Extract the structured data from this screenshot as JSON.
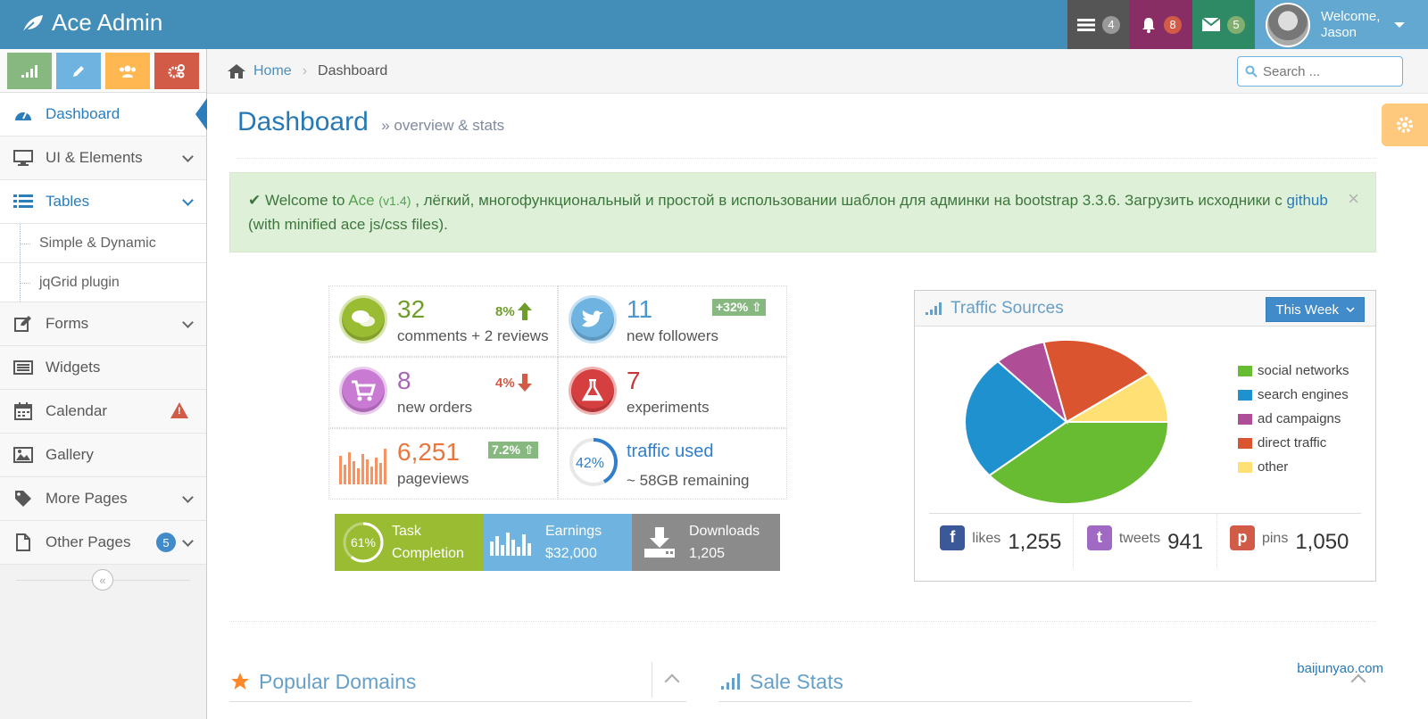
{
  "brand": {
    "name": "Ace Admin"
  },
  "navbar": {
    "tasks_count": "4",
    "notifications_count": "8",
    "messages_count": "5",
    "welcome": "Welcome,",
    "user_name": "Jason"
  },
  "sidebar": {
    "items": [
      {
        "label": "Dashboard"
      },
      {
        "label": "UI & Elements"
      },
      {
        "label": "Tables"
      },
      {
        "label": "Forms"
      },
      {
        "label": "Widgets"
      },
      {
        "label": "Calendar"
      },
      {
        "label": "Gallery"
      },
      {
        "label": "More Pages"
      },
      {
        "label": "Other Pages",
        "badge": "5"
      }
    ],
    "subitems": [
      {
        "label": "Simple & Dynamic"
      },
      {
        "label": "jqGrid plugin"
      }
    ]
  },
  "breadcrumb": {
    "home": "Home",
    "current": "Dashboard"
  },
  "search": {
    "placeholder": "Search ..."
  },
  "page": {
    "title": "Dashboard",
    "subtitle": "» overview & stats"
  },
  "alert": {
    "prefix": "Welcome to",
    "brand": "Ace",
    "version": "(v1.4)",
    "text": ", лёгкий, многофункциональный и простой в использовании шаблон для админки на bootstrap 3.3.6. Загрузить исходники с",
    "link": "github",
    "suffix": "(with minified ace js/css files)."
  },
  "infoboxes": [
    {
      "value": "32",
      "label": "comments + 2 reviews",
      "change": "8%",
      "direction": "up",
      "color": "#9abc32"
    },
    {
      "value": "11",
      "label": "new followers",
      "change": "+32%",
      "direction": "up",
      "color": "#6fb3e0"
    },
    {
      "value": "8",
      "label": "new orders",
      "change": "4%",
      "direction": "down",
      "color": "#b74635"
    },
    {
      "value": "7",
      "label": "experiments",
      "color": "#d53f40"
    },
    {
      "value": "6,251",
      "label": "pageviews",
      "change": "7.2%",
      "direction": "up",
      "color": "#e8b110"
    },
    {
      "value": "traffic used",
      "label": "~ 58GB remaining",
      "percent": "42%",
      "color": "#307ecc"
    }
  ],
  "stats_strip": [
    {
      "percent": "61%",
      "line1": "Task",
      "line2": "Completion",
      "color": "#9abc32"
    },
    {
      "line1": "Earnings",
      "line2": "$32,000",
      "color": "#6fb3e0"
    },
    {
      "line1": "Downloads",
      "line2": "1,205",
      "color": "#8b8b8b"
    }
  ],
  "traffic": {
    "title": "Traffic Sources",
    "period": "This Week",
    "legend": [
      {
        "label": "social networks",
        "color": "#68bc31"
      },
      {
        "label": "search engines",
        "color": "#2091cf"
      },
      {
        "label": "ad campaigns",
        "color": "#af4e96"
      },
      {
        "label": "direct traffic",
        "color": "#da5430"
      },
      {
        "label": "other",
        "color": "#fee074"
      }
    ],
    "social": [
      {
        "label": "likes",
        "value": "1,255"
      },
      {
        "label": "tweets",
        "value": "941"
      },
      {
        "label": "pins",
        "value": "1,050"
      }
    ]
  },
  "chart_data": {
    "type": "pie",
    "title": "",
    "categories": [
      "social networks",
      "search engines",
      "ad campaigns",
      "direct traffic",
      "other"
    ],
    "values": [
      38.7,
      24.5,
      8.2,
      18.6,
      10.0
    ]
  },
  "bottom": {
    "popular_domains": "Popular Domains",
    "sale_stats": "Sale Stats",
    "watermark": "baijunyao.com"
  }
}
